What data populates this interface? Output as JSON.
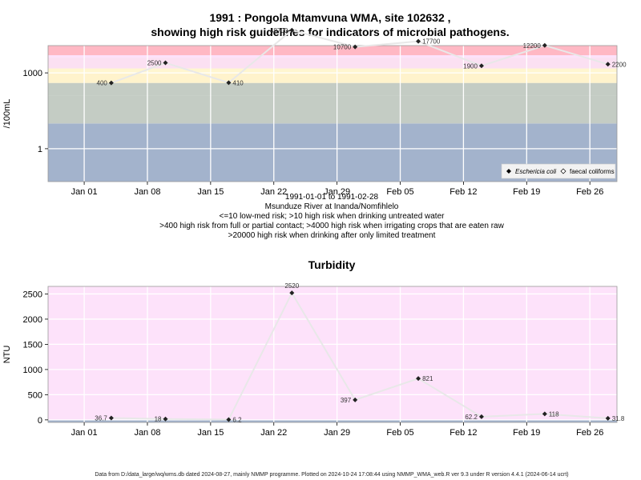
{
  "chart_data": [
    {
      "type": "line",
      "title_line1": "1991 : Pongola Mtamvuna WMA, site 102632 ,",
      "title_line2": "showing high risk guidelines for indicators of microbial pathogens.",
      "ylabel": "/100mL",
      "yscale": "log10",
      "ylim": [
        0.05,
        12000
      ],
      "yticks": [
        {
          "value": 1,
          "label": "1"
        },
        {
          "value": 1000,
          "label": "1000"
        }
      ],
      "xlim": [
        "1990-12-28",
        "1991-03-01"
      ],
      "xticks": [
        {
          "date": "1991-01-01",
          "label": "Jan 01"
        },
        {
          "date": "1991-01-08",
          "label": "Jan 08"
        },
        {
          "date": "1991-01-15",
          "label": "Jan 15"
        },
        {
          "date": "1991-01-22",
          "label": "Jan 22"
        },
        {
          "date": "1991-01-29",
          "label": "Jan 29"
        },
        {
          "date": "1991-02-05",
          "label": "Feb 05"
        },
        {
          "date": "1991-02-12",
          "label": "Feb 12"
        },
        {
          "date": "1991-02-19",
          "label": "Feb 19"
        },
        {
          "date": "1991-02-26",
          "label": "Feb 26"
        }
      ],
      "bands": [
        {
          "from": 0.05,
          "to": 10,
          "color": "#a3b3cc"
        },
        {
          "from": 10,
          "to": 130,
          "color": "#c4ccc4"
        },
        {
          "from": 130,
          "to": 400,
          "color": "#c4ccc4"
        },
        {
          "from": 400,
          "to": 1000,
          "color": "#fff3cc"
        },
        {
          "from": 1000,
          "to": 1500,
          "color": "#fff6d0"
        },
        {
          "from": 1500,
          "to": 4000,
          "color": "#fbe0f2"
        },
        {
          "from": 4000,
          "to": 5000,
          "color": "#fde2fa"
        },
        {
          "from": 5000,
          "to": 12000,
          "color": "#ffb8c4"
        }
      ],
      "x": [
        "1991-01-04",
        "1991-01-10",
        "1991-01-17",
        "1991-01-24",
        "1991-01-31",
        "1991-02-07",
        "1991-02-14",
        "1991-02-21",
        "1991-02-28"
      ],
      "series": [
        {
          "name": "faecal coliforms",
          "values": [
            400,
            2500,
            410,
            48700,
            10700,
            17700,
            1900,
            12200,
            2200
          ],
          "labels": [
            "400",
            "2500",
            "410",
            "48700",
            "10700",
            "17700",
            "1900",
            "12200",
            "2200"
          ],
          "label_side": [
            "left",
            "left",
            "right",
            "left",
            "left",
            "right",
            "left",
            "left",
            "right"
          ]
        }
      ],
      "legend": [
        "Eschericia coli",
        "faecal coliforms"
      ],
      "caption": [
        "1991-01-01 to 1991-02-28",
        "Msunduze River at Inanda/Nomfihlelo",
        "<=10 low-med risk; >10 high risk when drinking untreated water",
        ">400 high risk from full or partial contact; >4000 high risk when irrigating crops that are eaten raw",
        ">20000 high risk when drinking after only limited treatment"
      ]
    },
    {
      "type": "line",
      "title": "Turbidity",
      "ylabel": "NTU",
      "ylim": [
        -50,
        2650
      ],
      "yticks": [
        0,
        500,
        1000,
        1500,
        2000,
        2500
      ],
      "xlim": [
        "1990-12-28",
        "1991-03-01"
      ],
      "xticks": [
        {
          "date": "1991-01-01",
          "label": "Jan 01"
        },
        {
          "date": "1991-01-08",
          "label": "Jan 08"
        },
        {
          "date": "1991-01-15",
          "label": "Jan 15"
        },
        {
          "date": "1991-01-22",
          "label": "Jan 22"
        },
        {
          "date": "1991-01-29",
          "label": "Jan 29"
        },
        {
          "date": "1991-02-05",
          "label": "Feb 05"
        },
        {
          "date": "1991-02-12",
          "label": "Feb 12"
        },
        {
          "date": "1991-02-19",
          "label": "Feb 19"
        },
        {
          "date": "1991-02-26",
          "label": "Feb 26"
        }
      ],
      "bands": [
        {
          "from": -50,
          "to": 0,
          "color": "#a3b3cc"
        },
        {
          "from": 0,
          "to": 2650,
          "color": "#fde2fa"
        }
      ],
      "x": [
        "1991-01-04",
        "1991-01-10",
        "1991-01-17",
        "1991-01-24",
        "1991-01-31",
        "1991-02-07",
        "1991-02-14",
        "1991-02-21",
        "1991-02-28"
      ],
      "series": [
        {
          "name": "",
          "values": [
            36.7,
            18,
            6.2,
            2520,
            397,
            821,
            62.2,
            118,
            31.8
          ],
          "labels": [
            "36.7",
            "18",
            "6.2",
            "2520",
            "397",
            "821",
            "62.2",
            "118",
            "31.8"
          ],
          "label_side": [
            "left",
            "left",
            "right",
            "top",
            "left",
            "right",
            "left",
            "right",
            "right"
          ]
        }
      ]
    }
  ],
  "footer": "Data from D:/data_large/wq/wms.db dated 2024-08-27, mainly NMMP programme. Plotted on 2024-10-24 17:08:44 using NMMP_WMA_web.R ver 9.3 under R version 4.4.1 (2024-06-14 ucrt)"
}
